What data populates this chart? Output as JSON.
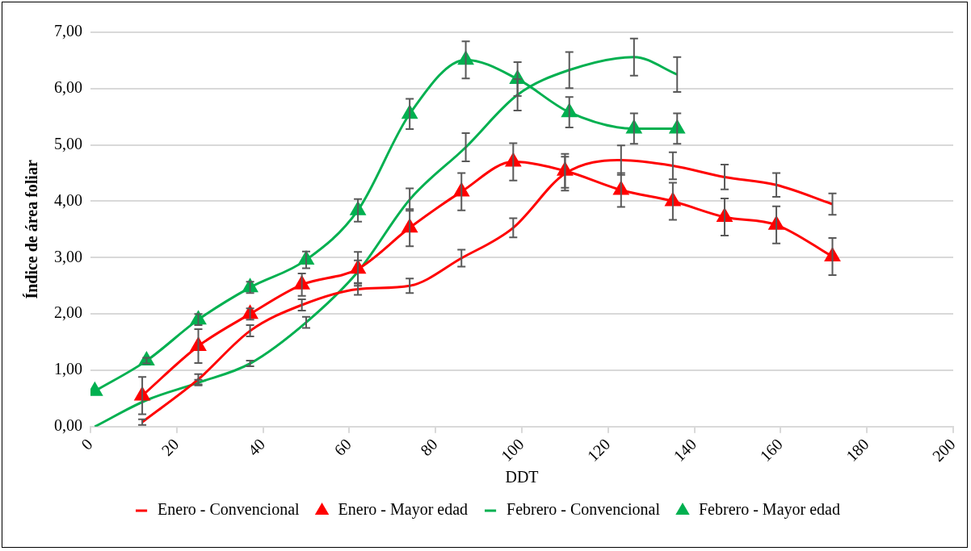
{
  "chart_data": {
    "type": "line",
    "xlabel": "DDT",
    "ylabel": "Índice de área foliar",
    "xlim": [
      0,
      200
    ],
    "xticks": [
      0,
      20,
      40,
      60,
      80,
      100,
      120,
      140,
      160,
      180,
      200
    ],
    "ylim": [
      0,
      7
    ],
    "yticks": [
      {
        "value": 0,
        "label": "0,00"
      },
      {
        "value": 1,
        "label": "1,00"
      },
      {
        "value": 2,
        "label": "2,00"
      },
      {
        "value": 3,
        "label": "3,00"
      },
      {
        "value": 4,
        "label": "4,00"
      },
      {
        "value": 5,
        "label": "5,00"
      },
      {
        "value": 6,
        "label": "6,00"
      },
      {
        "value": 7,
        "label": "7,00"
      }
    ],
    "grid": "y",
    "legend": "bottom",
    "line_style": "solid",
    "series": [
      {
        "name": "Enero - Convencional",
        "color": "#ff0000",
        "marker": "none",
        "x": [
          12,
          25,
          37,
          49,
          62,
          74,
          86,
          98,
          110,
          123,
          135,
          147,
          159,
          172
        ],
        "values": [
          0.08,
          0.84,
          1.7,
          2.16,
          2.44,
          2.5,
          2.99,
          3.53,
          4.49,
          4.73,
          4.63,
          4.43,
          4.29,
          3.95
        ],
        "errors": [
          0.05,
          0.09,
          0.1,
          0.1,
          0.1,
          0.13,
          0.15,
          0.17,
          0.3,
          0.26,
          0.24,
          0.22,
          0.21,
          0.19
        ]
      },
      {
        "name": "Enero - Mayor edad",
        "color": "#ff0000",
        "marker": "triangle",
        "x": [
          12,
          25,
          37,
          49,
          62,
          74,
          86,
          98,
          110,
          123,
          135,
          147,
          159,
          172
        ],
        "values": [
          0.55,
          1.43,
          2.0,
          2.52,
          2.8,
          3.53,
          4.17,
          4.7,
          4.54,
          4.2,
          4.0,
          3.72,
          3.58,
          3.02
        ],
        "errors": [
          0.33,
          0.3,
          0.1,
          0.2,
          0.3,
          0.33,
          0.33,
          0.33,
          0.3,
          0.3,
          0.33,
          0.33,
          0.33,
          0.33
        ]
      },
      {
        "name": "Febrero - Convencional",
        "color": "#00b050",
        "marker": "none",
        "x": [
          1,
          13,
          25,
          37,
          50,
          62,
          74,
          87,
          99,
          111,
          126,
          136
        ],
        "values": [
          0,
          0.47,
          0.78,
          1.12,
          1.85,
          2.75,
          4.03,
          4.96,
          5.89,
          6.33,
          6.56,
          6.25
        ],
        "errors": [
          null,
          null,
          0.05,
          0.05,
          0.1,
          0.2,
          0.2,
          0.25,
          0.28,
          0.32,
          0.33,
          0.31
        ]
      },
      {
        "name": "Febrero - Mayor edad",
        "color": "#00b050",
        "marker": "triangle",
        "x": [
          1,
          13,
          25,
          37,
          50,
          62,
          74,
          87,
          99,
          111,
          126,
          136
        ],
        "values": [
          0.63,
          1.17,
          1.9,
          2.47,
          2.96,
          3.84,
          5.55,
          6.51,
          6.17,
          5.58,
          5.29,
          5.29
        ],
        "errors": [
          null,
          0.05,
          0.1,
          0.1,
          0.15,
          0.2,
          0.27,
          0.33,
          0.3,
          0.27,
          0.27,
          0.27
        ]
      }
    ]
  }
}
